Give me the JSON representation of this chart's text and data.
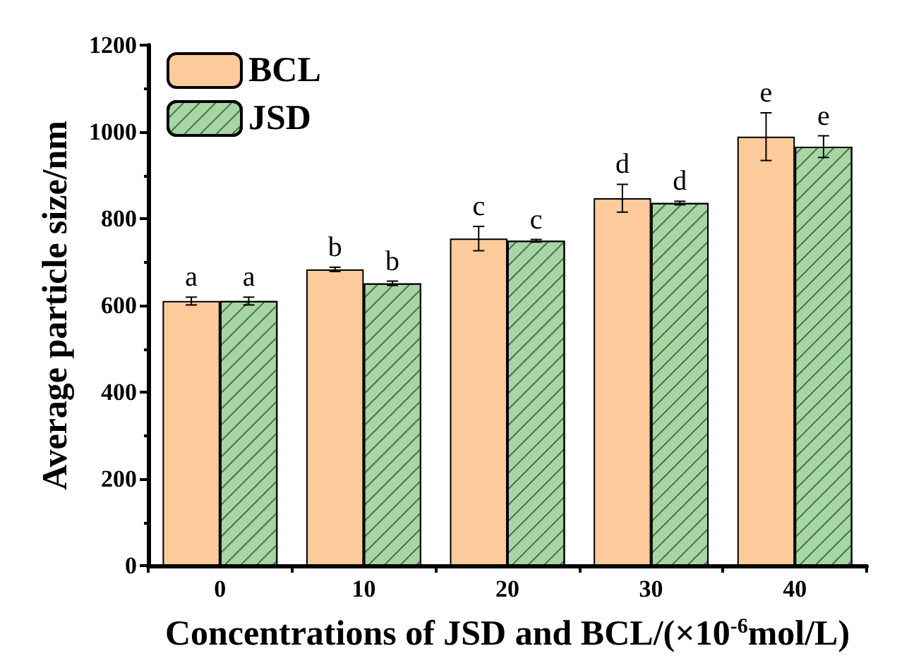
{
  "chart_data": {
    "type": "bar",
    "xlabel": "Concentrations of JSD and BCL/(×10$^{-6}$mol/L)",
    "ylabel": "Average particle size/nm",
    "categories": [
      "0",
      "10",
      "20",
      "30",
      "40"
    ],
    "series": [
      {
        "name": "BCL",
        "color": "#fdcb9b",
        "values": [
          610,
          683,
          754,
          847,
          989
        ],
        "errors": [
          9,
          5,
          28,
          32,
          55
        ],
        "value_labels": [
          "a",
          "b",
          "c",
          "d",
          "e"
        ]
      },
      {
        "name": "JSD",
        "color": "#a6d6a4",
        "values": [
          610,
          651,
          749,
          836,
          966
        ],
        "errors": [
          9,
          5,
          3,
          4,
          25
        ],
        "value_labels": [
          "a",
          "b",
          "c",
          "d",
          "e"
        ]
      }
    ],
    "ylim": [
      0,
      1200
    ],
    "yticks": [
      0,
      200,
      400,
      600,
      800,
      1000,
      1200
    ],
    "grid": false,
    "legend": "top left"
  }
}
